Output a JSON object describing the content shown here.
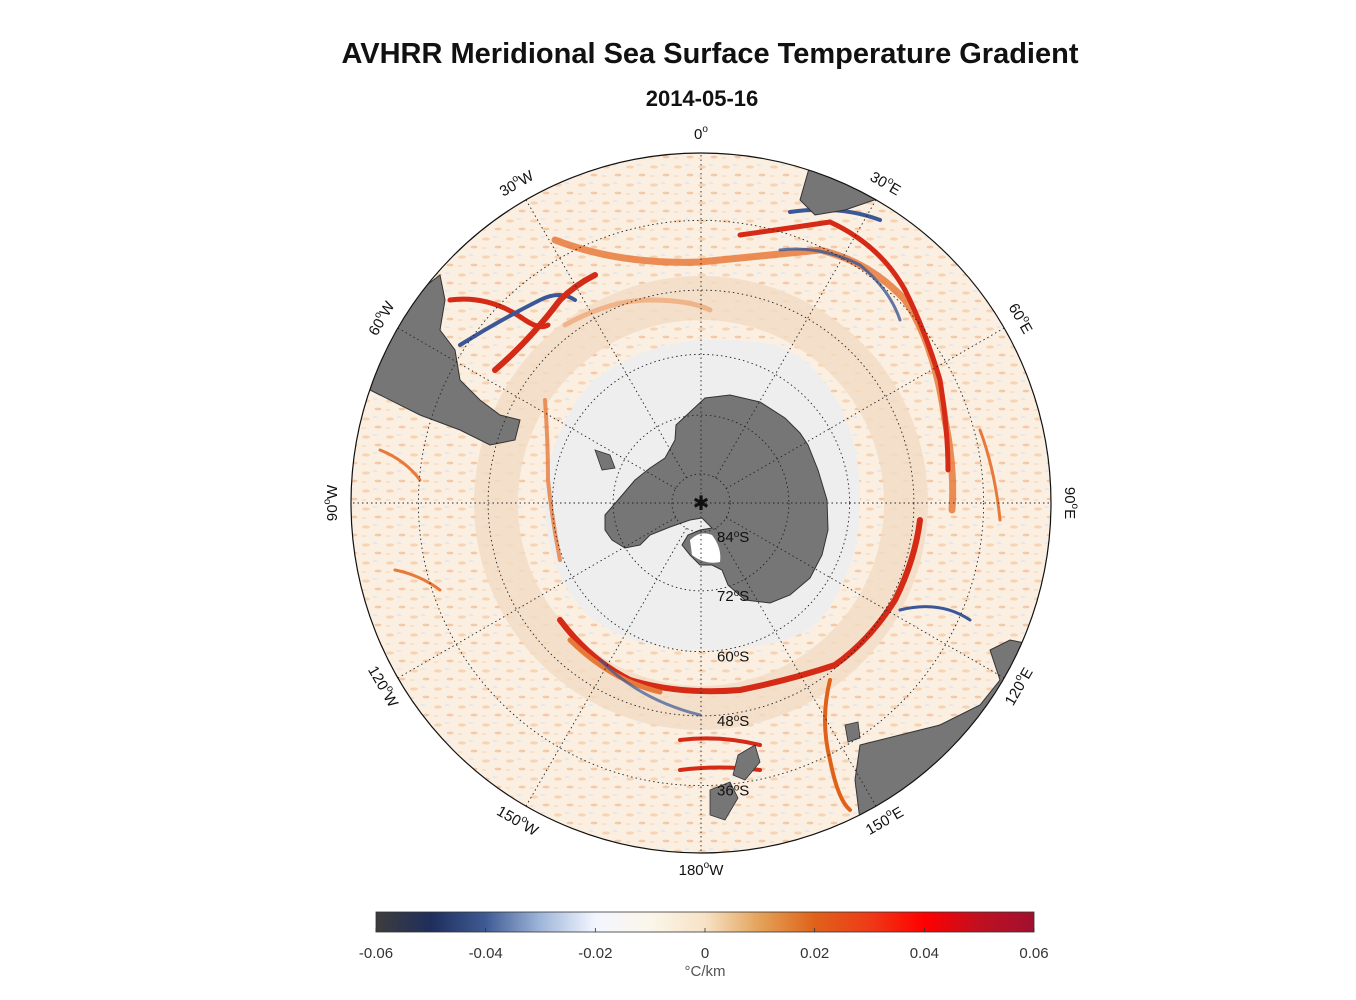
{
  "title": "AVHRR Meridional Sea Surface Temperature Gradient",
  "subtitle": "2014-05-16",
  "projection": "south polar stereographic",
  "longitude_labels": [
    {
      "lon": 0,
      "text": "0",
      "suffix": ""
    },
    {
      "lon": 30,
      "text": "30",
      "suffix": "E"
    },
    {
      "lon": 60,
      "text": "60",
      "suffix": "E"
    },
    {
      "lon": 90,
      "text": "90",
      "suffix": "E"
    },
    {
      "lon": 120,
      "text": "120",
      "suffix": "E"
    },
    {
      "lon": 150,
      "text": "150",
      "suffix": "E"
    },
    {
      "lon": 180,
      "text": "180",
      "suffix": "W"
    },
    {
      "lon": -150,
      "text": "150",
      "suffix": "W"
    },
    {
      "lon": -120,
      "text": "120",
      "suffix": "W"
    },
    {
      "lon": -90,
      "text": "90",
      "suffix": "W"
    },
    {
      "lon": -60,
      "text": "60",
      "suffix": "W"
    },
    {
      "lon": -30,
      "text": "30",
      "suffix": "W"
    }
  ],
  "latitude_labels": [
    {
      "lat": -84,
      "text": "84",
      "suffix": "S"
    },
    {
      "lat": -72,
      "text": "72",
      "suffix": "S"
    },
    {
      "lat": -60,
      "text": "60",
      "suffix": "S"
    },
    {
      "lat": -48,
      "text": "48",
      "suffix": "S"
    },
    {
      "lat": -36,
      "text": "36",
      "suffix": "S"
    }
  ],
  "colorbar": {
    "min": -0.06,
    "max": 0.06,
    "ticks": [
      "-0.06",
      "-0.04",
      "-0.02",
      "0",
      "0.02",
      "0.04",
      "0.06"
    ],
    "units": "°C/km",
    "stops": [
      "#3d3d3d",
      "#1f2e5c",
      "#3f5b93",
      "#9fb6da",
      "#f3f6ff",
      "#fbf6ea",
      "#f7e2c6",
      "#e3a259",
      "#e0621a",
      "#ef3a18",
      "#ff0000",
      "#c01020",
      "#a01030"
    ]
  },
  "colors": {
    "land": "#767676",
    "ice": "#eeeeee",
    "ocean_background": "#fbeee0",
    "front_positive": "#d42a16",
    "front_positive_light": "#e9773a",
    "front_negative": "#3a5797",
    "front_negative_light": "#a6c1e3"
  }
}
